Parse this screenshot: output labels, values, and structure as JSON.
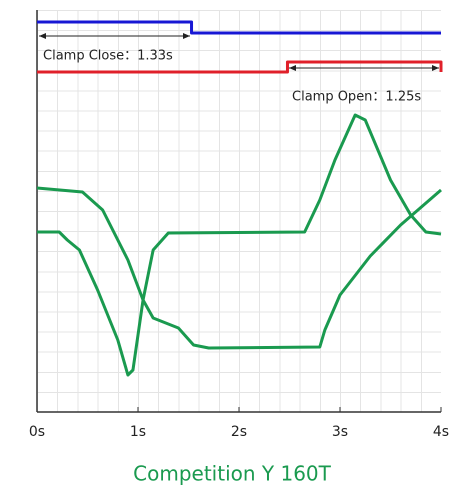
{
  "chart_data": {
    "type": "line",
    "title": "Competition Y 160T",
    "annotations": [
      "Clamp Close：1.33s",
      "Clamp Open：1.25s"
    ],
    "xlim": [
      0,
      4
    ],
    "xticks": [
      {
        "value": 0,
        "label": "0s"
      },
      {
        "value": 1,
        "label": "1s"
      },
      {
        "value": 2,
        "label": "2s"
      },
      {
        "value": 3,
        "label": "3s"
      },
      {
        "value": 4,
        "label": "4s"
      }
    ],
    "ylim": [
      0,
      100
    ],
    "grid": true,
    "series": [
      {
        "color": "#1717d4",
        "x": [
          0,
          1.53,
          1.53,
          4
        ],
        "values": [
          97.5,
          97.5,
          94.75,
          94.75
        ]
      },
      {
        "color": "#e0202a",
        "x": [
          0,
          2.48,
          2.48,
          4,
          4
        ],
        "values": [
          85,
          85,
          87.5,
          87.5,
          85
        ]
      },
      {
        "color": "#1a9a4f",
        "x": [
          0,
          0.45,
          0.65,
          0.9,
          1.05,
          1.15,
          1.4,
          1.55,
          1.7,
          2.8,
          2.85,
          3.0,
          3.3,
          3.6,
          4
        ],
        "values": [
          56,
          55,
          50.5,
          38,
          28,
          23.5,
          21,
          16.75,
          16,
          16.25,
          20.5,
          29.25,
          39,
          46.75,
          55.5
        ]
      },
      {
        "color": "#1a9a4f",
        "x": [
          0,
          0.22,
          0.3,
          0.42,
          0.6,
          0.8,
          0.9,
          0.95,
          1.05,
          1.15,
          1.3,
          2.65,
          2.8,
          2.95,
          3.15,
          3.25,
          3.5,
          3.7,
          3.85,
          4
        ],
        "values": [
          45,
          45,
          43,
          40.5,
          30.5,
          18,
          9.25,
          10.5,
          28,
          40.5,
          44.75,
          45,
          53,
          63,
          74.25,
          73,
          58,
          49.25,
          45,
          44.5
        ]
      }
    ]
  }
}
